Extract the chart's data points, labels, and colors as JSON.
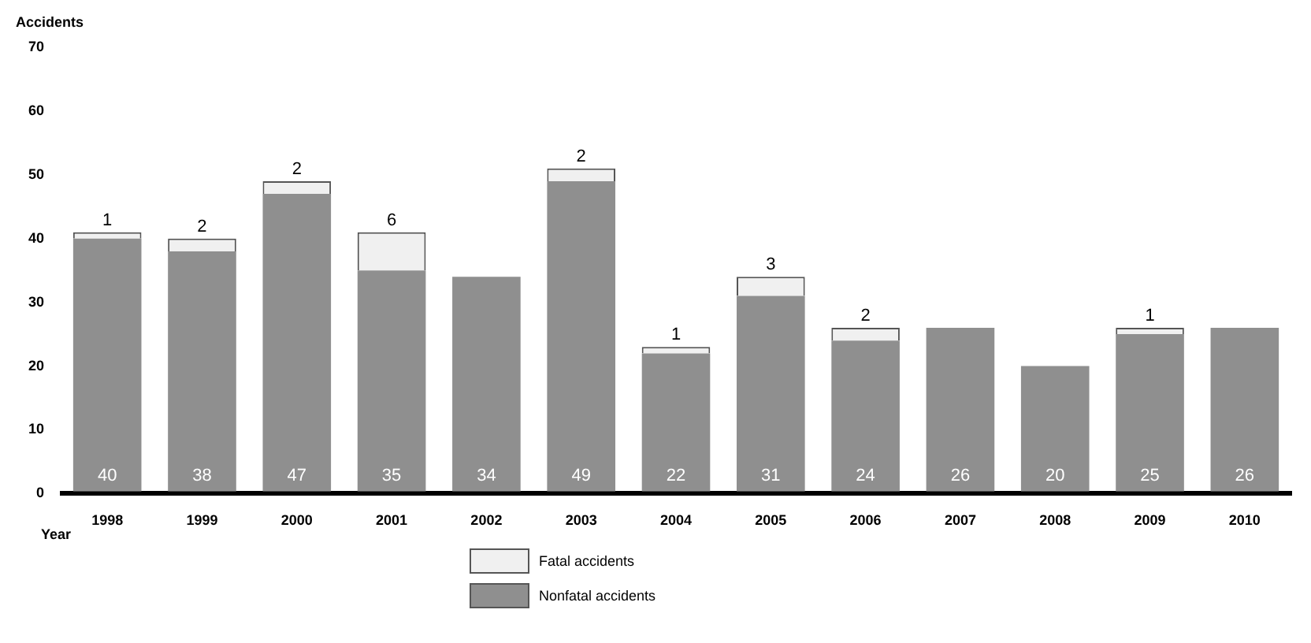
{
  "chart_data": {
    "type": "bar",
    "ylabel": "Accidents",
    "xlabel": "Year",
    "categories": [
      "1998",
      "1999",
      "2000",
      "2001",
      "2002",
      "2003",
      "2004",
      "2005",
      "2006",
      "2007",
      "2008",
      "2009",
      "2010"
    ],
    "stacked": true,
    "ylim": [
      0,
      70
    ],
    "yticks": [
      0,
      10,
      20,
      30,
      40,
      50,
      60,
      70
    ],
    "grid": false,
    "legend": "bottom",
    "data_labels": true,
    "series": [
      {
        "name": "Nonfatal accidents",
        "color": "#8f8f8f",
        "values": [
          40,
          38,
          47,
          35,
          34,
          49,
          22,
          31,
          24,
          26,
          20,
          25,
          26
        ]
      },
      {
        "name": "Fatal accidents",
        "color": "#f0f0f0",
        "values": [
          1,
          2,
          2,
          6,
          null,
          2,
          1,
          3,
          2,
          null,
          null,
          1,
          null
        ]
      }
    ]
  }
}
